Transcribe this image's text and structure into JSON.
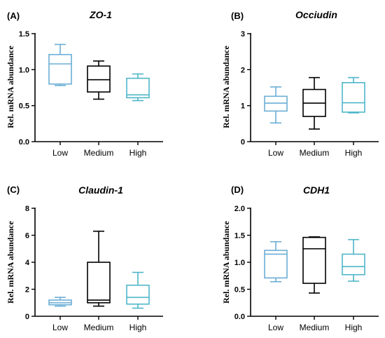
{
  "chart_data": [
    {
      "type": "box",
      "panel": "(A)",
      "title": "ZO-1",
      "ylabel": "Rel. mRNA abundance",
      "ylim": [
        0,
        1.5
      ],
      "yticks": [
        "0.0",
        "0.5",
        "1.0",
        "1.5"
      ],
      "categories": [
        "Low",
        "Medium",
        "High"
      ],
      "colors": [
        "#6BAED6",
        "#000000",
        "#4FB6C9"
      ],
      "boxes": [
        {
          "min": 0.78,
          "q1": 0.8,
          "median": 1.08,
          "q3": 1.21,
          "max": 1.35
        },
        {
          "min": 0.59,
          "q1": 0.69,
          "median": 0.86,
          "q3": 1.05,
          "max": 1.12
        },
        {
          "min": 0.57,
          "q1": 0.61,
          "median": 0.65,
          "q3": 0.88,
          "max": 0.94
        }
      ]
    },
    {
      "type": "box",
      "panel": "(B)",
      "title": "Occiudin",
      "ylabel": "Rel. mRNA abundance",
      "ylim": [
        0,
        3
      ],
      "yticks": [
        "0",
        "1",
        "2",
        "3"
      ],
      "categories": [
        "Low",
        "Medium",
        "High"
      ],
      "colors": [
        "#6BAED6",
        "#000000",
        "#4FB6C9"
      ],
      "boxes": [
        {
          "min": 0.52,
          "q1": 0.85,
          "median": 1.07,
          "q3": 1.26,
          "max": 1.52
        },
        {
          "min": 0.35,
          "q1": 0.7,
          "median": 1.07,
          "q3": 1.45,
          "max": 1.78
        },
        {
          "min": 0.8,
          "q1": 0.82,
          "median": 1.08,
          "q3": 1.64,
          "max": 1.78
        }
      ]
    },
    {
      "type": "box",
      "panel": "(C)",
      "title": "Claudin-1",
      "ylabel": "Rel. mRNA abundance",
      "ylim": [
        0,
        8
      ],
      "yticks": [
        "0",
        "2",
        "4",
        "6",
        "8"
      ],
      "categories": [
        "Low",
        "Medium",
        "High"
      ],
      "colors": [
        "#6BAED6",
        "#000000",
        "#4FB6C9"
      ],
      "boxes": [
        {
          "min": 0.75,
          "q1": 0.85,
          "median": 1.0,
          "q3": 1.2,
          "max": 1.4
        },
        {
          "min": 0.75,
          "q1": 1.0,
          "median": 1.2,
          "q3": 4.0,
          "max": 6.3
        },
        {
          "min": 0.6,
          "q1": 0.9,
          "median": 1.4,
          "q3": 2.3,
          "max": 3.25
        }
      ]
    },
    {
      "type": "box",
      "panel": "(D)",
      "title": "CDH1",
      "ylabel": "Rel. mRNA abundance",
      "ylim": [
        0,
        2
      ],
      "yticks": [
        "0.0",
        "0.5",
        "1.0",
        "1.5",
        "2.0"
      ],
      "categories": [
        "Low",
        "Medium",
        "High"
      ],
      "colors": [
        "#6BAED6",
        "#000000",
        "#4FB6C9"
      ],
      "boxes": [
        {
          "min": 0.64,
          "q1": 0.71,
          "median": 1.15,
          "q3": 1.22,
          "max": 1.38
        },
        {
          "min": 0.43,
          "q1": 0.61,
          "median": 1.25,
          "q3": 1.46,
          "max": 1.47
        },
        {
          "min": 0.65,
          "q1": 0.77,
          "median": 0.92,
          "q3": 1.15,
          "max": 1.42
        }
      ]
    }
  ]
}
